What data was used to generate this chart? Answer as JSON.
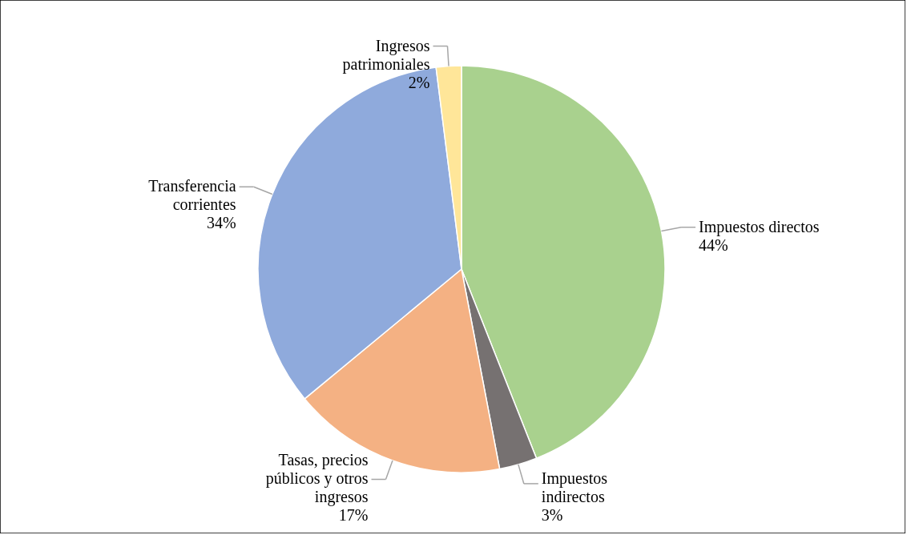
{
  "chart_data": {
    "type": "pie",
    "categories": [
      "Impuestos directos",
      "Impuestos indirectos",
      "Tasas, precios públicos y otros ingresos",
      "Transferencia corrientes",
      "Ingresos patrimoniales"
    ],
    "values": [
      44,
      3,
      17,
      34,
      2
    ],
    "colors": [
      "#a9d18e",
      "#767171",
      "#f4b183",
      "#8faadc",
      "#ffe699"
    ],
    "value_labels": [
      "44%",
      "3%",
      "17%",
      "34%",
      "2%"
    ]
  }
}
